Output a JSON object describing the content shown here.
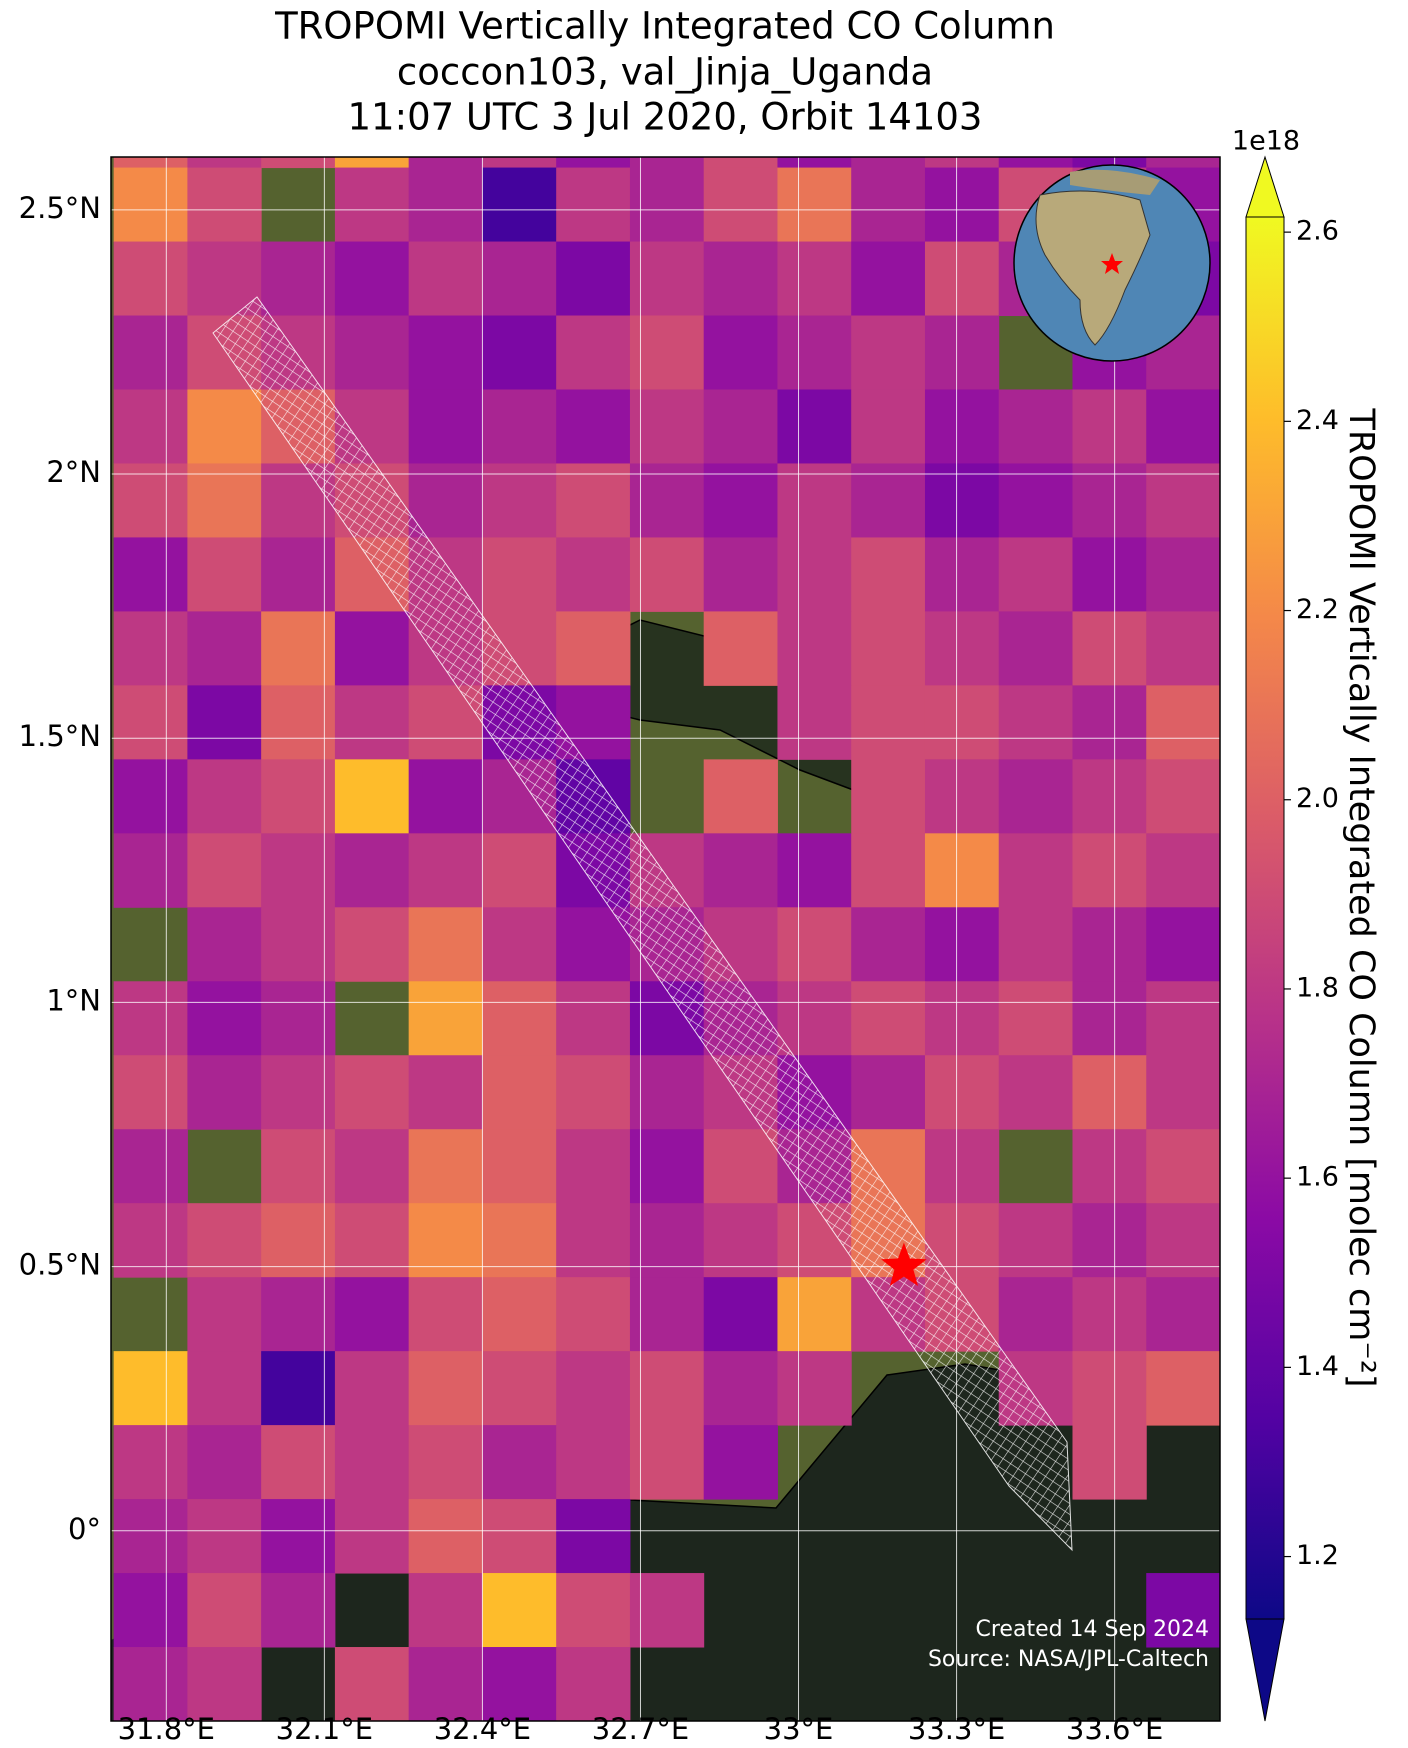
{
  "chart_data": {
    "type": "heatmap",
    "title": [
      "TROPOMI Vertically Integrated CO Column",
      "coccon103, val_Jinja_Uganda",
      "11:07 UTC 3 Jul 2020, Orbit 14103"
    ],
    "colorbar_label": "TROPOMI Vertically Integrated CO Column [molec cm⁻²]",
    "colorbar_offset": "1e18",
    "credits": [
      "Created 14 Sep 2024",
      "Source: NASA/JPL-Caltech"
    ],
    "colormap": [
      "#0d0887",
      "#5302a3",
      "#8b0aa5",
      "#b83289",
      "#db5c68",
      "#f48849",
      "#febd2a",
      "#f0f921"
    ],
    "clim": [
      1.134,
      2.616
    ],
    "cticks": [
      1.2,
      1.4,
      1.6,
      1.8,
      {
        "value": 2,
        "label": "2.0"
      },
      2.2,
      2.4,
      2.6
    ],
    "xlim": [
      31.695,
      33.8
    ],
    "ylim": [
      -0.36,
      2.6
    ],
    "xticks": [
      {
        "value": 31.8,
        "label": "31.8°E"
      },
      {
        "value": 32.1,
        "label": "32.1°E"
      },
      {
        "value": 32.4,
        "label": "32.4°E"
      },
      {
        "value": 32.7,
        "label": "32.7°E"
      },
      {
        "value": 33,
        "label": "33°E"
      },
      {
        "value": 33.3,
        "label": "33.3°E"
      },
      {
        "value": 33.6,
        "label": "33.6°E"
      }
    ],
    "yticks": [
      {
        "value": 0,
        "label": "0°"
      },
      {
        "value": 0.5,
        "label": "0.5°N"
      },
      {
        "value": 1,
        "label": "1°N"
      },
      {
        "value": 1.5,
        "label": "1.5°N"
      },
      {
        "value": 2,
        "label": "2°N"
      },
      {
        "value": 2.5,
        "label": "2.5°N"
      }
    ],
    "grid": true,
    "x_edges": [
      31.7,
      31.84,
      31.98,
      32.12,
      32.26,
      32.4,
      32.54,
      32.68,
      32.82,
      32.96,
      33.1,
      33.24,
      33.38,
      33.52,
      33.66,
      33.8
    ],
    "y_edges": [
      2.72,
      2.58,
      2.44,
      2.3,
      2.16,
      2.02,
      1.88,
      1.74,
      1.6,
      1.46,
      1.32,
      1.18,
      1.04,
      0.9,
      0.76,
      0.62,
      0.48,
      0.34,
      0.2,
      0.06,
      -0.08,
      -0.22,
      -0.36
    ],
    "values": [
      [
        2.0,
        1.8,
        1.9,
        2.3,
        1.7,
        1.8,
        1.6,
        1.7,
        1.9,
        1.6,
        1.7,
        1.8,
        1.6,
        1.5,
        1.7
      ],
      [
        2.2,
        1.9,
        null,
        1.8,
        1.7,
        1.3,
        1.8,
        1.7,
        1.9,
        2.1,
        1.7,
        1.6,
        1.9,
        1.8,
        1.6
      ],
      [
        1.9,
        1.8,
        1.7,
        1.6,
        1.8,
        1.7,
        1.5,
        1.8,
        1.7,
        1.8,
        1.6,
        1.9,
        1.7,
        1.6,
        1.5
      ],
      [
        1.7,
        1.9,
        1.8,
        1.7,
        1.6,
        1.5,
        1.8,
        1.9,
        1.6,
        1.7,
        1.8,
        1.7,
        null,
        1.6,
        1.7
      ],
      [
        1.8,
        2.2,
        2.0,
        1.8,
        1.6,
        1.7,
        1.6,
        1.8,
        1.7,
        1.5,
        1.8,
        1.6,
        1.7,
        1.8,
        1.6
      ],
      [
        1.9,
        2.1,
        1.8,
        1.9,
        1.7,
        1.8,
        1.9,
        1.7,
        1.6,
        1.8,
        1.7,
        1.5,
        1.6,
        1.7,
        1.8
      ],
      [
        1.6,
        1.9,
        1.7,
        2.0,
        1.8,
        1.9,
        1.8,
        1.9,
        1.7,
        1.8,
        1.9,
        1.7,
        1.8,
        1.6,
        1.7
      ],
      [
        1.8,
        1.7,
        2.1,
        1.6,
        1.8,
        1.9,
        2.0,
        null,
        2.0,
        1.8,
        1.9,
        1.8,
        1.7,
        1.9,
        1.8
      ],
      [
        1.9,
        1.5,
        2.0,
        1.8,
        1.9,
        1.5,
        1.6,
        null,
        null,
        1.8,
        1.9,
        1.9,
        1.8,
        1.7,
        2.0
      ],
      [
        1.6,
        1.8,
        1.9,
        2.4,
        1.6,
        1.7,
        1.4,
        null,
        2.0,
        null,
        1.9,
        1.8,
        1.7,
        1.8,
        1.9
      ],
      [
        1.7,
        1.9,
        1.8,
        1.7,
        1.8,
        1.9,
        1.5,
        1.8,
        1.7,
        1.6,
        1.9,
        2.2,
        1.8,
        1.9,
        1.8
      ],
      [
        null,
        1.7,
        1.8,
        1.9,
        2.1,
        1.8,
        1.6,
        1.7,
        1.8,
        1.9,
        1.7,
        1.6,
        1.8,
        1.7,
        1.6
      ],
      [
        1.8,
        1.6,
        1.7,
        null,
        2.3,
        2.0,
        1.8,
        1.5,
        1.7,
        1.8,
        1.9,
        1.8,
        1.9,
        1.7,
        1.8
      ],
      [
        1.9,
        1.7,
        1.8,
        1.9,
        1.8,
        2.0,
        1.9,
        1.7,
        1.8,
        1.6,
        1.7,
        1.9,
        1.8,
        2.0,
        1.8
      ],
      [
        1.7,
        null,
        1.9,
        1.8,
        2.1,
        2.0,
        1.8,
        1.6,
        1.9,
        1.7,
        2.1,
        1.8,
        null,
        1.8,
        1.9
      ],
      [
        1.8,
        1.9,
        2.0,
        1.9,
        2.2,
        2.1,
        1.8,
        1.7,
        1.8,
        1.9,
        2.1,
        1.9,
        1.8,
        1.7,
        1.8
      ],
      [
        null,
        1.8,
        1.7,
        1.6,
        1.9,
        2.0,
        1.9,
        1.7,
        1.5,
        2.3,
        1.8,
        1.9,
        1.7,
        1.8,
        1.7
      ],
      [
        2.4,
        1.8,
        1.3,
        1.8,
        2.0,
        1.9,
        1.8,
        1.9,
        1.7,
        1.8,
        null,
        null,
        1.8,
        1.9,
        2.0
      ],
      [
        1.8,
        1.7,
        1.9,
        1.8,
        1.9,
        1.7,
        1.8,
        1.9,
        1.6,
        null,
        null,
        null,
        null,
        1.9,
        null
      ],
      [
        1.7,
        1.8,
        1.6,
        1.8,
        2.0,
        1.9,
        1.5,
        null,
        null,
        null,
        null,
        null,
        null,
        null,
        null
      ],
      [
        1.6,
        1.9,
        1.7,
        null,
        1.8,
        2.4,
        1.9,
        1.8,
        null,
        null,
        null,
        null,
        null,
        null,
        1.5
      ],
      [
        1.7,
        1.8,
        null,
        1.9,
        1.7,
        1.6,
        1.8,
        null,
        null,
        null,
        null,
        null,
        null,
        null,
        null
      ]
    ],
    "marker": {
      "lon": 33.2,
      "lat": 0.5,
      "color": "#ff0000"
    }
  }
}
